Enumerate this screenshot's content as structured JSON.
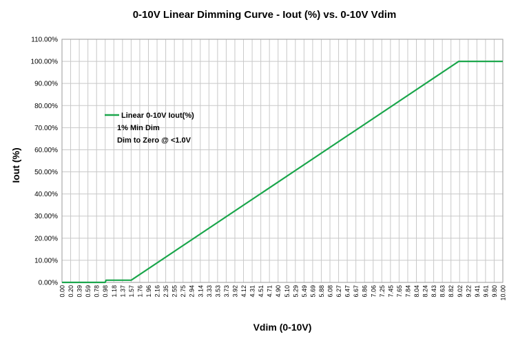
{
  "chart_data": {
    "type": "line",
    "title": "0-10V Linear Dimming Curve - Iout (%) vs. 0-10V Vdim",
    "xlabel": "Vdim (0-10V)",
    "ylabel": "Iout (%)",
    "xlim": [
      0,
      10
    ],
    "ylim": [
      0,
      110
    ],
    "grid": true,
    "legend_position": "upper-left",
    "legend": [
      "Linear 0-10V Iout(%)",
      "1% Min Dim",
      "Dim to Zero @ <1.0V"
    ],
    "y_tick_labels": [
      "0.00%",
      "10.00%",
      "20.00%",
      "30.00%",
      "40.00%",
      "50.00%",
      "60.00%",
      "70.00%",
      "80.00%",
      "90.00%",
      "100.00%",
      "110.00%"
    ],
    "y_tick_values": [
      0,
      10,
      20,
      30,
      40,
      50,
      60,
      70,
      80,
      90,
      100,
      110
    ],
    "x_tick_labels": [
      "0.00",
      "0.20",
      "0.39",
      "0.59",
      "0.78",
      "0.98",
      "1.18",
      "1.37",
      "1.57",
      "1.76",
      "1.96",
      "2.16",
      "2.35",
      "2.55",
      "2.75",
      "2.94",
      "3.14",
      "3.33",
      "3.53",
      "3.73",
      "3.92",
      "4.12",
      "4.31",
      "4.51",
      "4.71",
      "4.90",
      "5.10",
      "5.29",
      "5.49",
      "5.69",
      "5.88",
      "6.08",
      "6.27",
      "6.47",
      "6.67",
      "6.86",
      "7.06",
      "7.25",
      "7.45",
      "7.65",
      "7.84",
      "8.04",
      "8.24",
      "8.43",
      "8.63",
      "8.82",
      "9.02",
      "9.22",
      "9.41",
      "9.61",
      "9.80",
      "10.00"
    ],
    "series": [
      {
        "name": "Linear 0-10V Iout(%)",
        "color": "#1aa64b",
        "x": [
          0.0,
          0.98,
          1.0,
          1.57,
          9.0,
          10.0
        ],
        "y": [
          0,
          0,
          1,
          1,
          100,
          100
        ]
      }
    ]
  }
}
